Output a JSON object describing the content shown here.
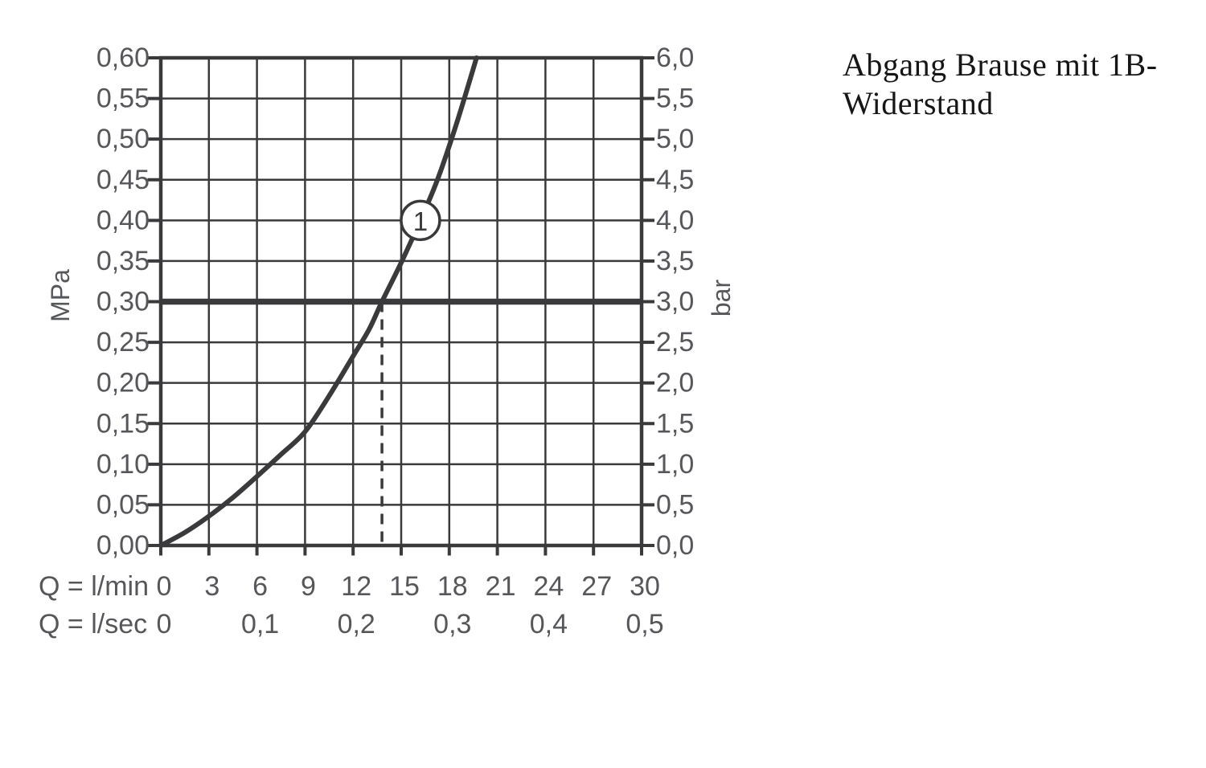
{
  "title": {
    "line1": "Abgang Brause mit 1B-",
    "line2": "Widerstand",
    "full": "Abgang Brause mit 1B-Widerstand"
  },
  "colors": {
    "ink": "#3a3a3c",
    "label": "#56575a",
    "title_text": "#161616",
    "background": "#ffffff",
    "annotation_fill": "#ffffff"
  },
  "chart_data": {
    "type": "line",
    "title": "Abgang Brause mit 1B-Widerstand",
    "grid": "on",
    "x_axis": {
      "range_lmin": [
        0,
        30
      ],
      "grid_step_lmin": 3,
      "rows": [
        {
          "caption": "Q = l/min",
          "ticks": [
            {
              "v": 0,
              "t": "0"
            },
            {
              "v": 3,
              "t": "3"
            },
            {
              "v": 6,
              "t": "6"
            },
            {
              "v": 9,
              "t": "9"
            },
            {
              "v": 12,
              "t": "12"
            },
            {
              "v": 15,
              "t": "15"
            },
            {
              "v": 18,
              "t": "18"
            },
            {
              "v": 21,
              "t": "21"
            },
            {
              "v": 24,
              "t": "24"
            },
            {
              "v": 27,
              "t": "27"
            },
            {
              "v": 30,
              "t": "30"
            }
          ]
        },
        {
          "caption": "Q = l/sec",
          "ticks": [
            {
              "v": 0,
              "lsec": 0.0,
              "t": "0"
            },
            {
              "v": 6,
              "lsec": 0.1,
              "t": "0,1"
            },
            {
              "v": 12,
              "lsec": 0.2,
              "t": "0,2"
            },
            {
              "v": 18,
              "lsec": 0.3,
              "t": "0,3"
            },
            {
              "v": 24,
              "lsec": 0.4,
              "t": "0,4"
            },
            {
              "v": 30,
              "lsec": 0.5,
              "t": "0,5"
            }
          ]
        }
      ]
    },
    "y_axis_left": {
      "unit": "MPa",
      "range": [
        0,
        0.6
      ],
      "grid_step": 0.05,
      "ticks": [
        {
          "v": 0.6,
          "t": "0,60"
        },
        {
          "v": 0.55,
          "t": "0,55"
        },
        {
          "v": 0.5,
          "t": "0,50"
        },
        {
          "v": 0.45,
          "t": "0,45"
        },
        {
          "v": 0.4,
          "t": "0,40"
        },
        {
          "v": 0.35,
          "t": "0,35"
        },
        {
          "v": 0.3,
          "t": "0,30"
        },
        {
          "v": 0.25,
          "t": "0,25"
        },
        {
          "v": 0.2,
          "t": "0,20"
        },
        {
          "v": 0.15,
          "t": "0,15"
        },
        {
          "v": 0.1,
          "t": "0,10"
        },
        {
          "v": 0.05,
          "t": "0,05"
        },
        {
          "v": 0.0,
          "t": "0,00"
        }
      ]
    },
    "y_axis_right": {
      "unit": "bar",
      "range": [
        0,
        6
      ],
      "ticks": [
        {
          "v": 6.0,
          "t": "6,0"
        },
        {
          "v": 5.5,
          "t": "5,5"
        },
        {
          "v": 5.0,
          "t": "5,0"
        },
        {
          "v": 4.5,
          "t": "4,5"
        },
        {
          "v": 4.0,
          "t": "4,0"
        },
        {
          "v": 3.5,
          "t": "3,5"
        },
        {
          "v": 3.0,
          "t": "3,0"
        },
        {
          "v": 2.5,
          "t": "2,5"
        },
        {
          "v": 2.0,
          "t": "2,0"
        },
        {
          "v": 1.5,
          "t": "1,5"
        },
        {
          "v": 1.0,
          "t": "1,0"
        },
        {
          "v": 0.5,
          "t": "0,5"
        },
        {
          "v": 0.0,
          "t": "0,0"
        }
      ]
    },
    "series": [
      {
        "name": "1",
        "points_lmin_mpa": [
          [
            0,
            0
          ],
          [
            1.5,
            0.016
          ],
          [
            3,
            0.036
          ],
          [
            4.5,
            0.059
          ],
          [
            6,
            0.085
          ],
          [
            7.5,
            0.112
          ],
          [
            9,
            0.14
          ],
          [
            10.5,
            0.184
          ],
          [
            12,
            0.233
          ],
          [
            13,
            0.266
          ],
          [
            13.8,
            0.3
          ],
          [
            15,
            0.348
          ],
          [
            16.2,
            0.4
          ],
          [
            17.3,
            0.452
          ],
          [
            18.5,
            0.522
          ],
          [
            19.7,
            0.6
          ]
        ]
      }
    ],
    "reference_line": {
      "mpa": 0.3,
      "bar": 3.0
    },
    "drop_line": {
      "lmin": 13.8,
      "from_mpa": 0.3
    },
    "annotation": {
      "label": "1",
      "lmin": 16.2,
      "mpa": 0.4
    }
  }
}
